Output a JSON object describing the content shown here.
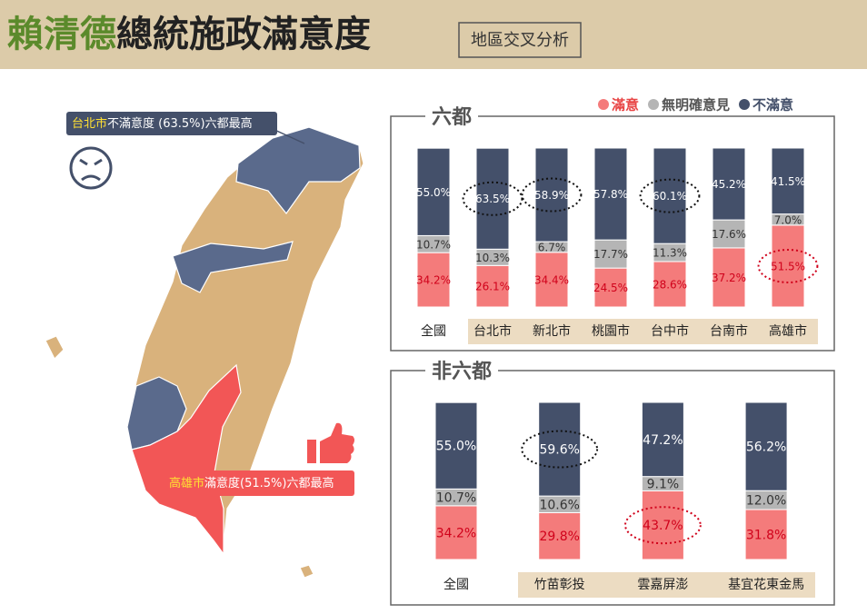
{
  "header": {
    "title_name": "賴清德",
    "title_rest": "總統施政滿意度",
    "tag": "地區交叉分析"
  },
  "map": {
    "note_north": {
      "city": "台北市",
      "text": "不滿意度 (63.5%)六都最高"
    },
    "note_south": {
      "city": "高雄市",
      "text": "滿意度(51.5%)六都最高"
    }
  },
  "chart_data": [
    {
      "type": "stacked-bar",
      "title": "六都",
      "categories": [
        "全國",
        "台北市",
        "新北市",
        "桃園市",
        "台中市",
        "台南市",
        "高雄市"
      ],
      "ylim": [
        0,
        100
      ],
      "series": [
        {
          "name": "滿意",
          "color": "#f47b7b",
          "values": [
            34.2,
            26.1,
            34.4,
            24.5,
            28.6,
            37.2,
            51.5
          ],
          "value_labels": [
            "34.2%",
            "26.1%",
            "34.4%",
            "24.5%",
            "28.6%",
            "37.2%",
            "51.5%"
          ]
        },
        {
          "name": "無明確意見",
          "color": "#b5b5b5",
          "values": [
            10.7,
            10.3,
            6.7,
            17.7,
            11.3,
            17.6,
            7.0
          ],
          "value_labels": [
            "10.7%",
            "10.3%",
            "6.7%",
            "17.7%",
            "11.3%",
            "17.6%",
            "7.0%"
          ]
        },
        {
          "name": "不滿意",
          "color": "#44506a",
          "values": [
            55.0,
            63.5,
            58.9,
            57.8,
            60.1,
            45.2,
            41.5
          ],
          "value_labels": [
            "55.0%",
            "63.5%",
            "58.9%",
            "57.8%",
            "60.1%",
            "45.2%",
            "41.5%"
          ]
        }
      ],
      "highlight": [
        {
          "series": 2,
          "index": 1,
          "color": "#111"
        },
        {
          "series": 2,
          "index": 2,
          "color": "#111"
        },
        {
          "series": 2,
          "index": 4,
          "color": "#111"
        },
        {
          "series": 0,
          "index": 6,
          "color": "#d0021b"
        }
      ]
    },
    {
      "type": "stacked-bar",
      "title": "非六都",
      "categories": [
        "全國",
        "竹苗彰投",
        "雲嘉屏澎",
        "基宜花東金馬"
      ],
      "ylim": [
        0,
        100
      ],
      "series": [
        {
          "color": "#f47b7b",
          "values": [
            34.2,
            29.8,
            43.7,
            31.8
          ],
          "value_labels": [
            "34.2%",
            "29.8%",
            "43.7%",
            "31.8%"
          ]
        },
        {
          "color": "#b5b5b5",
          "values": [
            10.7,
            10.6,
            9.1,
            12.0
          ],
          "value_labels": [
            "10.7%",
            "10.6%",
            "9.1%",
            "12.0%"
          ]
        },
        {
          "color": "#44506a",
          "values": [
            55.0,
            59.6,
            47.2,
            56.2
          ],
          "value_labels": [
            "55.0%",
            "59.6%",
            "47.2%",
            "56.2%"
          ]
        }
      ],
      "highlight": [
        {
          "series": 2,
          "index": 1,
          "color": "#111"
        },
        {
          "series": 0,
          "index": 2,
          "color": "#d0021b"
        }
      ]
    }
  ]
}
